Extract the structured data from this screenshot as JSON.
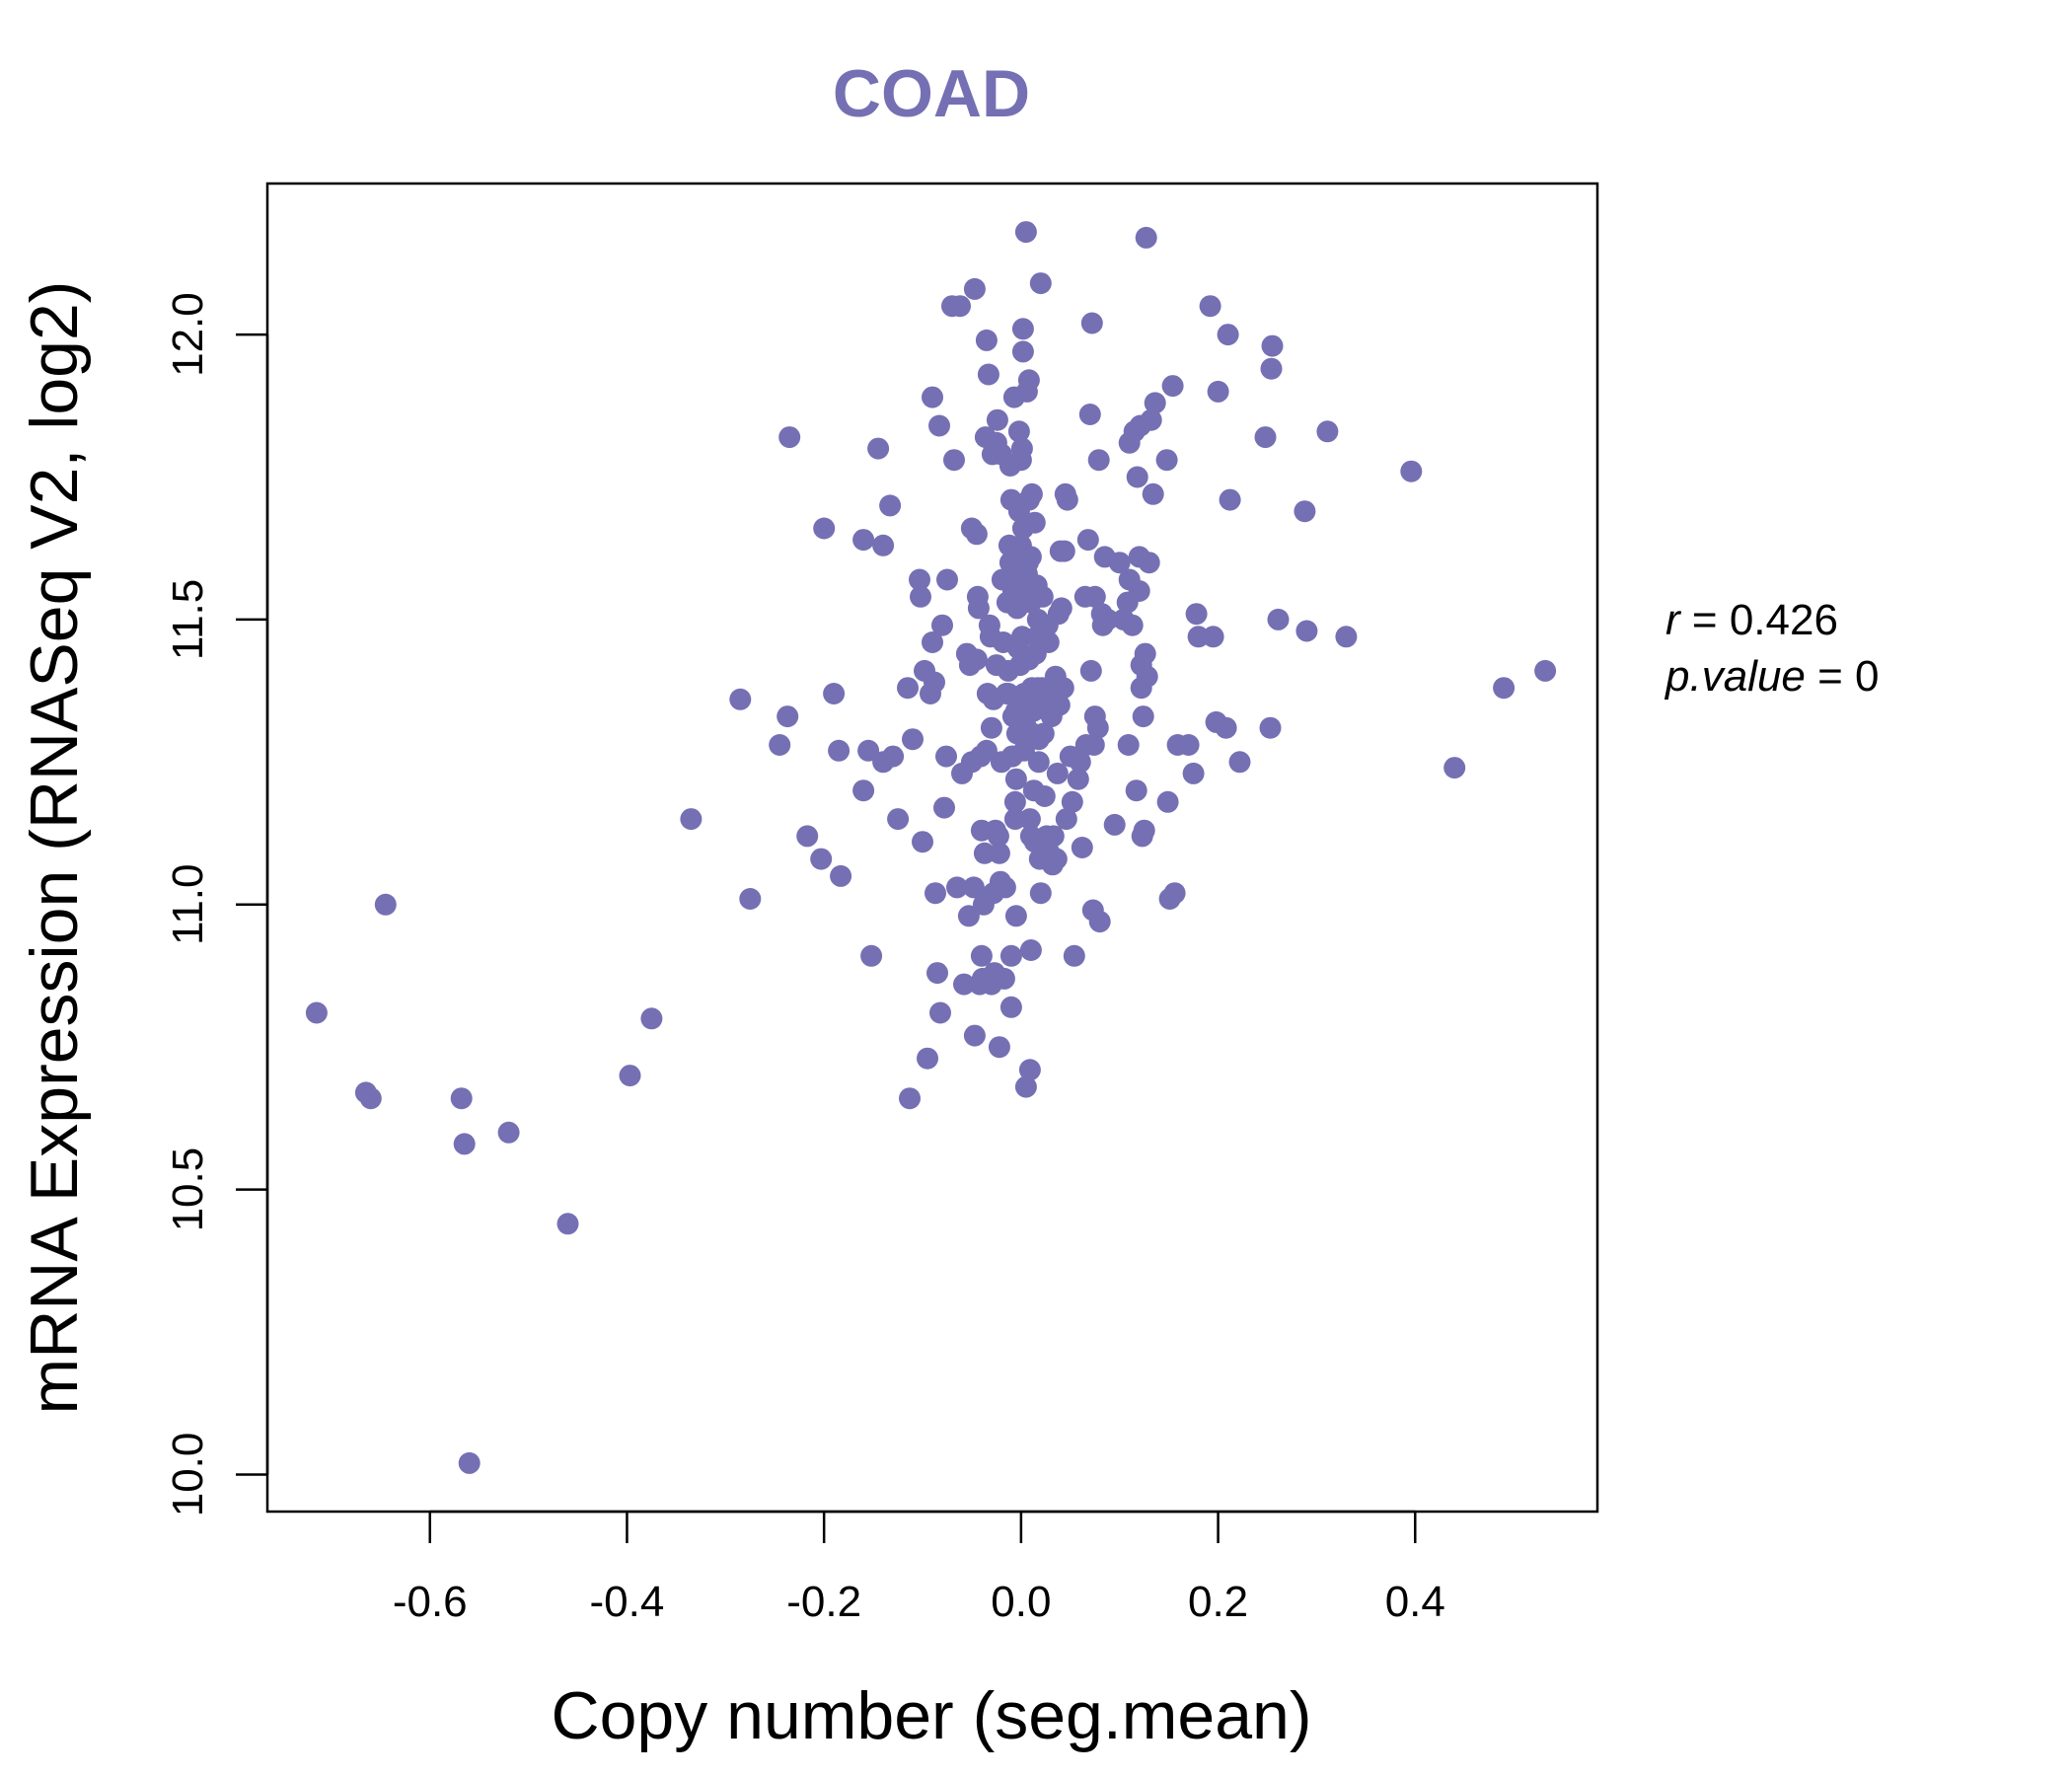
{
  "accent_color": "#7570b3",
  "chart_data": {
    "type": "scatter",
    "title": "COAD",
    "xlabel": "Copy number (seg.mean)",
    "ylabel": "mRNA Expression (RNASeq V2, log2)",
    "xlim": [
      -0.765,
      0.585
    ],
    "ylim": [
      9.935,
      12.265
    ],
    "xticks": [
      -0.6,
      -0.4,
      -0.2,
      0.0,
      0.2,
      0.4
    ],
    "xtick_labels": [
      "-0.6",
      "-0.4",
      "-0.2",
      "0.0",
      "0.2",
      "0.4"
    ],
    "yticks": [
      10.0,
      10.5,
      11.0,
      11.5,
      12.0
    ],
    "ytick_labels": [
      "10.0",
      "10.5",
      "11.0",
      "11.5",
      "12.0"
    ],
    "grid": false,
    "annotation": {
      "r_label": "r",
      "r_value": "0.426",
      "p_label": "p.value",
      "p_value": "0"
    },
    "points": [
      [
        -0.715,
        10.81
      ],
      [
        -0.665,
        10.67
      ],
      [
        -0.66,
        10.66
      ],
      [
        -0.645,
        11.0
      ],
      [
        -0.568,
        10.66
      ],
      [
        -0.565,
        10.58
      ],
      [
        -0.56,
        10.02
      ],
      [
        -0.52,
        10.6
      ],
      [
        -0.46,
        10.44
      ],
      [
        -0.397,
        10.7
      ],
      [
        -0.375,
        10.8
      ],
      [
        -0.335,
        11.15
      ],
      [
        -0.285,
        11.36
      ],
      [
        -0.275,
        11.01
      ],
      [
        -0.245,
        11.28
      ],
      [
        -0.237,
        11.33
      ],
      [
        -0.235,
        11.82
      ],
      [
        -0.217,
        11.12
      ],
      [
        -0.203,
        11.08
      ],
      [
        -0.2,
        11.66
      ],
      [
        -0.19,
        11.37
      ],
      [
        -0.185,
        11.27
      ],
      [
        -0.183,
        11.05
      ],
      [
        -0.16,
        11.64
      ],
      [
        -0.16,
        11.2
      ],
      [
        -0.155,
        11.27
      ],
      [
        -0.152,
        10.91
      ],
      [
        -0.145,
        11.8
      ],
      [
        -0.14,
        11.25
      ],
      [
        -0.14,
        11.63
      ],
      [
        -0.133,
        11.7
      ],
      [
        -0.13,
        11.26
      ],
      [
        -0.125,
        11.15
      ],
      [
        -0.115,
        11.38
      ],
      [
        -0.113,
        10.66
      ],
      [
        -0.11,
        11.29
      ],
      [
        -0.103,
        11.57
      ],
      [
        -0.102,
        11.54
      ],
      [
        -0.1,
        11.11
      ],
      [
        -0.098,
        11.41
      ],
      [
        -0.095,
        10.73
      ],
      [
        -0.092,
        11.37
      ],
      [
        -0.09,
        11.46
      ],
      [
        -0.09,
        11.89
      ],
      [
        -0.088,
        11.39
      ],
      [
        -0.087,
        11.02
      ],
      [
        -0.085,
        10.88
      ],
      [
        -0.083,
        11.84
      ],
      [
        -0.082,
        10.81
      ],
      [
        -0.08,
        11.49
      ],
      [
        -0.078,
        11.17
      ],
      [
        -0.076,
        11.26
      ],
      [
        -0.075,
        11.57
      ],
      [
        -0.07,
        12.05
      ],
      [
        -0.068,
        11.78
      ],
      [
        -0.065,
        11.03
      ],
      [
        -0.062,
        12.05
      ],
      [
        -0.06,
        11.23
      ],
      [
        -0.058,
        10.86
      ],
      [
        -0.055,
        11.44
      ],
      [
        -0.053,
        10.98
      ],
      [
        -0.052,
        11.42
      ],
      [
        -0.05,
        11.66
      ],
      [
        -0.05,
        11.25
      ],
      [
        -0.048,
        11.03
      ],
      [
        -0.047,
        12.08
      ],
      [
        -0.047,
        10.77
      ],
      [
        -0.045,
        11.43
      ],
      [
        -0.045,
        11.65
      ],
      [
        -0.044,
        11.54
      ],
      [
        -0.043,
        11.52
      ],
      [
        -0.042,
        10.86
      ],
      [
        -0.041,
        11.26
      ],
      [
        -0.04,
        10.91
      ],
      [
        -0.04,
        11.13
      ],
      [
        -0.039,
        10.87
      ],
      [
        -0.038,
        11.0
      ],
      [
        -0.037,
        11.09
      ],
      [
        -0.036,
        11.82
      ],
      [
        -0.035,
        11.27
      ],
      [
        -0.035,
        11.99
      ],
      [
        -0.034,
        11.37
      ],
      [
        -0.033,
        11.93
      ],
      [
        -0.032,
        11.49
      ],
      [
        -0.031,
        11.47
      ],
      [
        -0.03,
        11.31
      ],
      [
        -0.03,
        10.86
      ],
      [
        -0.029,
        11.79
      ],
      [
        -0.028,
        11.36
      ],
      [
        -0.028,
        11.02
      ],
      [
        -0.027,
        10.88
      ],
      [
        -0.026,
        11.13
      ],
      [
        -0.025,
        11.42
      ],
      [
        -0.025,
        11.81
      ],
      [
        -0.024,
        11.85
      ],
      [
        -0.023,
        11.12
      ],
      [
        -0.022,
        11.09
      ],
      [
        -0.022,
        10.75
      ],
      [
        -0.021,
        11.04
      ],
      [
        -0.02,
        11.79
      ],
      [
        -0.02,
        11.25
      ],
      [
        -0.019,
        11.57
      ],
      [
        -0.018,
        11.46
      ],
      [
        -0.017,
        10.87
      ],
      [
        -0.016,
        11.03
      ],
      [
        -0.015,
        11.37
      ],
      [
        -0.014,
        11.53
      ],
      [
        -0.013,
        11.37
      ],
      [
        -0.013,
        11.41
      ],
      [
        -0.012,
        11.63
      ],
      [
        -0.011,
        11.77
      ],
      [
        -0.011,
        11.6
      ],
      [
        -0.01,
        11.71
      ],
      [
        -0.01,
        10.91
      ],
      [
        -0.01,
        10.82
      ],
      [
        -0.009,
        11.26
      ],
      [
        -0.009,
        11.26
      ],
      [
        -0.008,
        11.55
      ],
      [
        -0.008,
        11.33
      ],
      [
        -0.007,
        11.89
      ],
      [
        -0.006,
        11.18
      ],
      [
        -0.006,
        11.15
      ],
      [
        -0.005,
        11.22
      ],
      [
        -0.005,
        11.34
      ],
      [
        -0.005,
        10.98
      ],
      [
        -0.004,
        11.52
      ],
      [
        -0.004,
        11.3
      ],
      [
        -0.003,
        11.45
      ],
      [
        -0.003,
        11.58
      ],
      [
        -0.002,
        11.69
      ],
      [
        -0.002,
        11.83
      ],
      [
        -0.001,
        11.42
      ],
      [
        0.0,
        11.36
      ],
      [
        0.0,
        11.63
      ],
      [
        0.0,
        11.56
      ],
      [
        0.0,
        11.78
      ],
      [
        0.001,
        11.8
      ],
      [
        0.001,
        11.47
      ],
      [
        0.002,
        11.66
      ],
      [
        0.002,
        12.01
      ],
      [
        0.002,
        11.97
      ],
      [
        0.003,
        11.37
      ],
      [
        0.003,
        11.27
      ],
      [
        0.004,
        11.32
      ],
      [
        0.005,
        12.18
      ],
      [
        0.005,
        10.68
      ],
      [
        0.006,
        11.58
      ],
      [
        0.006,
        11.9
      ],
      [
        0.007,
        11.37
      ],
      [
        0.007,
        11.6
      ],
      [
        0.008,
        11.43
      ],
      [
        0.008,
        11.71
      ],
      [
        0.008,
        11.92
      ],
      [
        0.009,
        11.15
      ],
      [
        0.009,
        10.71
      ],
      [
        0.01,
        10.92
      ],
      [
        0.01,
        11.53
      ],
      [
        0.01,
        11.61
      ],
      [
        0.01,
        11.12
      ],
      [
        0.011,
        11.72
      ],
      [
        0.011,
        11.38
      ],
      [
        0.012,
        11.3
      ],
      [
        0.013,
        11.2
      ],
      [
        0.013,
        11.34
      ],
      [
        0.014,
        11.11
      ],
      [
        0.014,
        11.67
      ],
      [
        0.015,
        11.44
      ],
      [
        0.016,
        11.47
      ],
      [
        0.016,
        11.56
      ],
      [
        0.017,
        11.38
      ],
      [
        0.017,
        11.5
      ],
      [
        0.018,
        11.29
      ],
      [
        0.018,
        11.25
      ],
      [
        0.019,
        11.08
      ],
      [
        0.02,
        12.09
      ],
      [
        0.02,
        11.02
      ],
      [
        0.021,
        11.38
      ],
      [
        0.022,
        11.54
      ],
      [
        0.023,
        11.3
      ],
      [
        0.024,
        11.19
      ],
      [
        0.025,
        11.36
      ],
      [
        0.026,
        11.12
      ],
      [
        0.027,
        11.49
      ],
      [
        0.028,
        11.46
      ],
      [
        0.029,
        11.09
      ],
      [
        0.03,
        11.37
      ],
      [
        0.031,
        11.33
      ],
      [
        0.032,
        11.07
      ],
      [
        0.033,
        11.12
      ],
      [
        0.035,
        11.4
      ],
      [
        0.036,
        11.08
      ],
      [
        0.037,
        11.23
      ],
      [
        0.038,
        11.51
      ],
      [
        0.039,
        11.35
      ],
      [
        0.04,
        11.62
      ],
      [
        0.041,
        11.52
      ],
      [
        0.043,
        11.38
      ],
      [
        0.044,
        11.62
      ],
      [
        0.045,
        11.72
      ],
      [
        0.046,
        11.15
      ],
      [
        0.047,
        11.71
      ],
      [
        0.05,
        11.26
      ],
      [
        0.052,
        11.18
      ],
      [
        0.054,
        10.91
      ],
      [
        0.058,
        11.22
      ],
      [
        0.06,
        11.25
      ],
      [
        0.062,
        11.1
      ],
      [
        0.065,
        11.54
      ],
      [
        0.066,
        11.28
      ],
      [
        0.068,
        11.64
      ],
      [
        0.07,
        11.86
      ],
      [
        0.071,
        11.41
      ],
      [
        0.072,
        12.02
      ],
      [
        0.073,
        10.99
      ],
      [
        0.074,
        11.28
      ],
      [
        0.075,
        11.33
      ],
      [
        0.075,
        11.54
      ],
      [
        0.078,
        11.31
      ],
      [
        0.079,
        11.78
      ],
      [
        0.08,
        10.97
      ],
      [
        0.082,
        11.51
      ],
      [
        0.083,
        11.49
      ],
      [
        0.085,
        11.61
      ],
      [
        0.088,
        11.5
      ],
      [
        0.095,
        11.14
      ],
      [
        0.1,
        11.6
      ],
      [
        0.104,
        11.5
      ],
      [
        0.108,
        11.53
      ],
      [
        0.109,
        11.28
      ],
      [
        0.11,
        11.57
      ],
      [
        0.11,
        11.81
      ],
      [
        0.113,
        11.49
      ],
      [
        0.115,
        11.83
      ],
      [
        0.117,
        11.2
      ],
      [
        0.118,
        11.75
      ],
      [
        0.12,
        11.55
      ],
      [
        0.12,
        11.61
      ],
      [
        0.121,
        11.84
      ],
      [
        0.122,
        11.38
      ],
      [
        0.122,
        11.42
      ],
      [
        0.123,
        11.12
      ],
      [
        0.124,
        11.33
      ],
      [
        0.125,
        11.13
      ],
      [
        0.126,
        11.44
      ],
      [
        0.127,
        12.17
      ],
      [
        0.128,
        11.4
      ],
      [
        0.13,
        11.6
      ],
      [
        0.132,
        11.85
      ],
      [
        0.134,
        11.72
      ],
      [
        0.136,
        11.88
      ],
      [
        0.148,
        11.78
      ],
      [
        0.149,
        11.18
      ],
      [
        0.151,
        11.01
      ],
      [
        0.154,
        11.91
      ],
      [
        0.156,
        11.02
      ],
      [
        0.159,
        11.28
      ],
      [
        0.17,
        11.28
      ],
      [
        0.175,
        11.23
      ],
      [
        0.178,
        11.51
      ],
      [
        0.18,
        11.47
      ],
      [
        0.192,
        12.05
      ],
      [
        0.195,
        11.47
      ],
      [
        0.198,
        11.32
      ],
      [
        0.2,
        11.9
      ],
      [
        0.208,
        11.31
      ],
      [
        0.21,
        12.0
      ],
      [
        0.212,
        11.71
      ],
      [
        0.222,
        11.25
      ],
      [
        0.248,
        11.82
      ],
      [
        0.253,
        11.31
      ],
      [
        0.254,
        11.94
      ],
      [
        0.255,
        11.98
      ],
      [
        0.261,
        11.5
      ],
      [
        0.288,
        11.69
      ],
      [
        0.29,
        11.48
      ],
      [
        0.311,
        11.83
      ],
      [
        0.33,
        11.47
      ],
      [
        0.396,
        11.76
      ],
      [
        0.44,
        11.24
      ],
      [
        0.49,
        11.38
      ],
      [
        0.532,
        11.41
      ]
    ]
  }
}
